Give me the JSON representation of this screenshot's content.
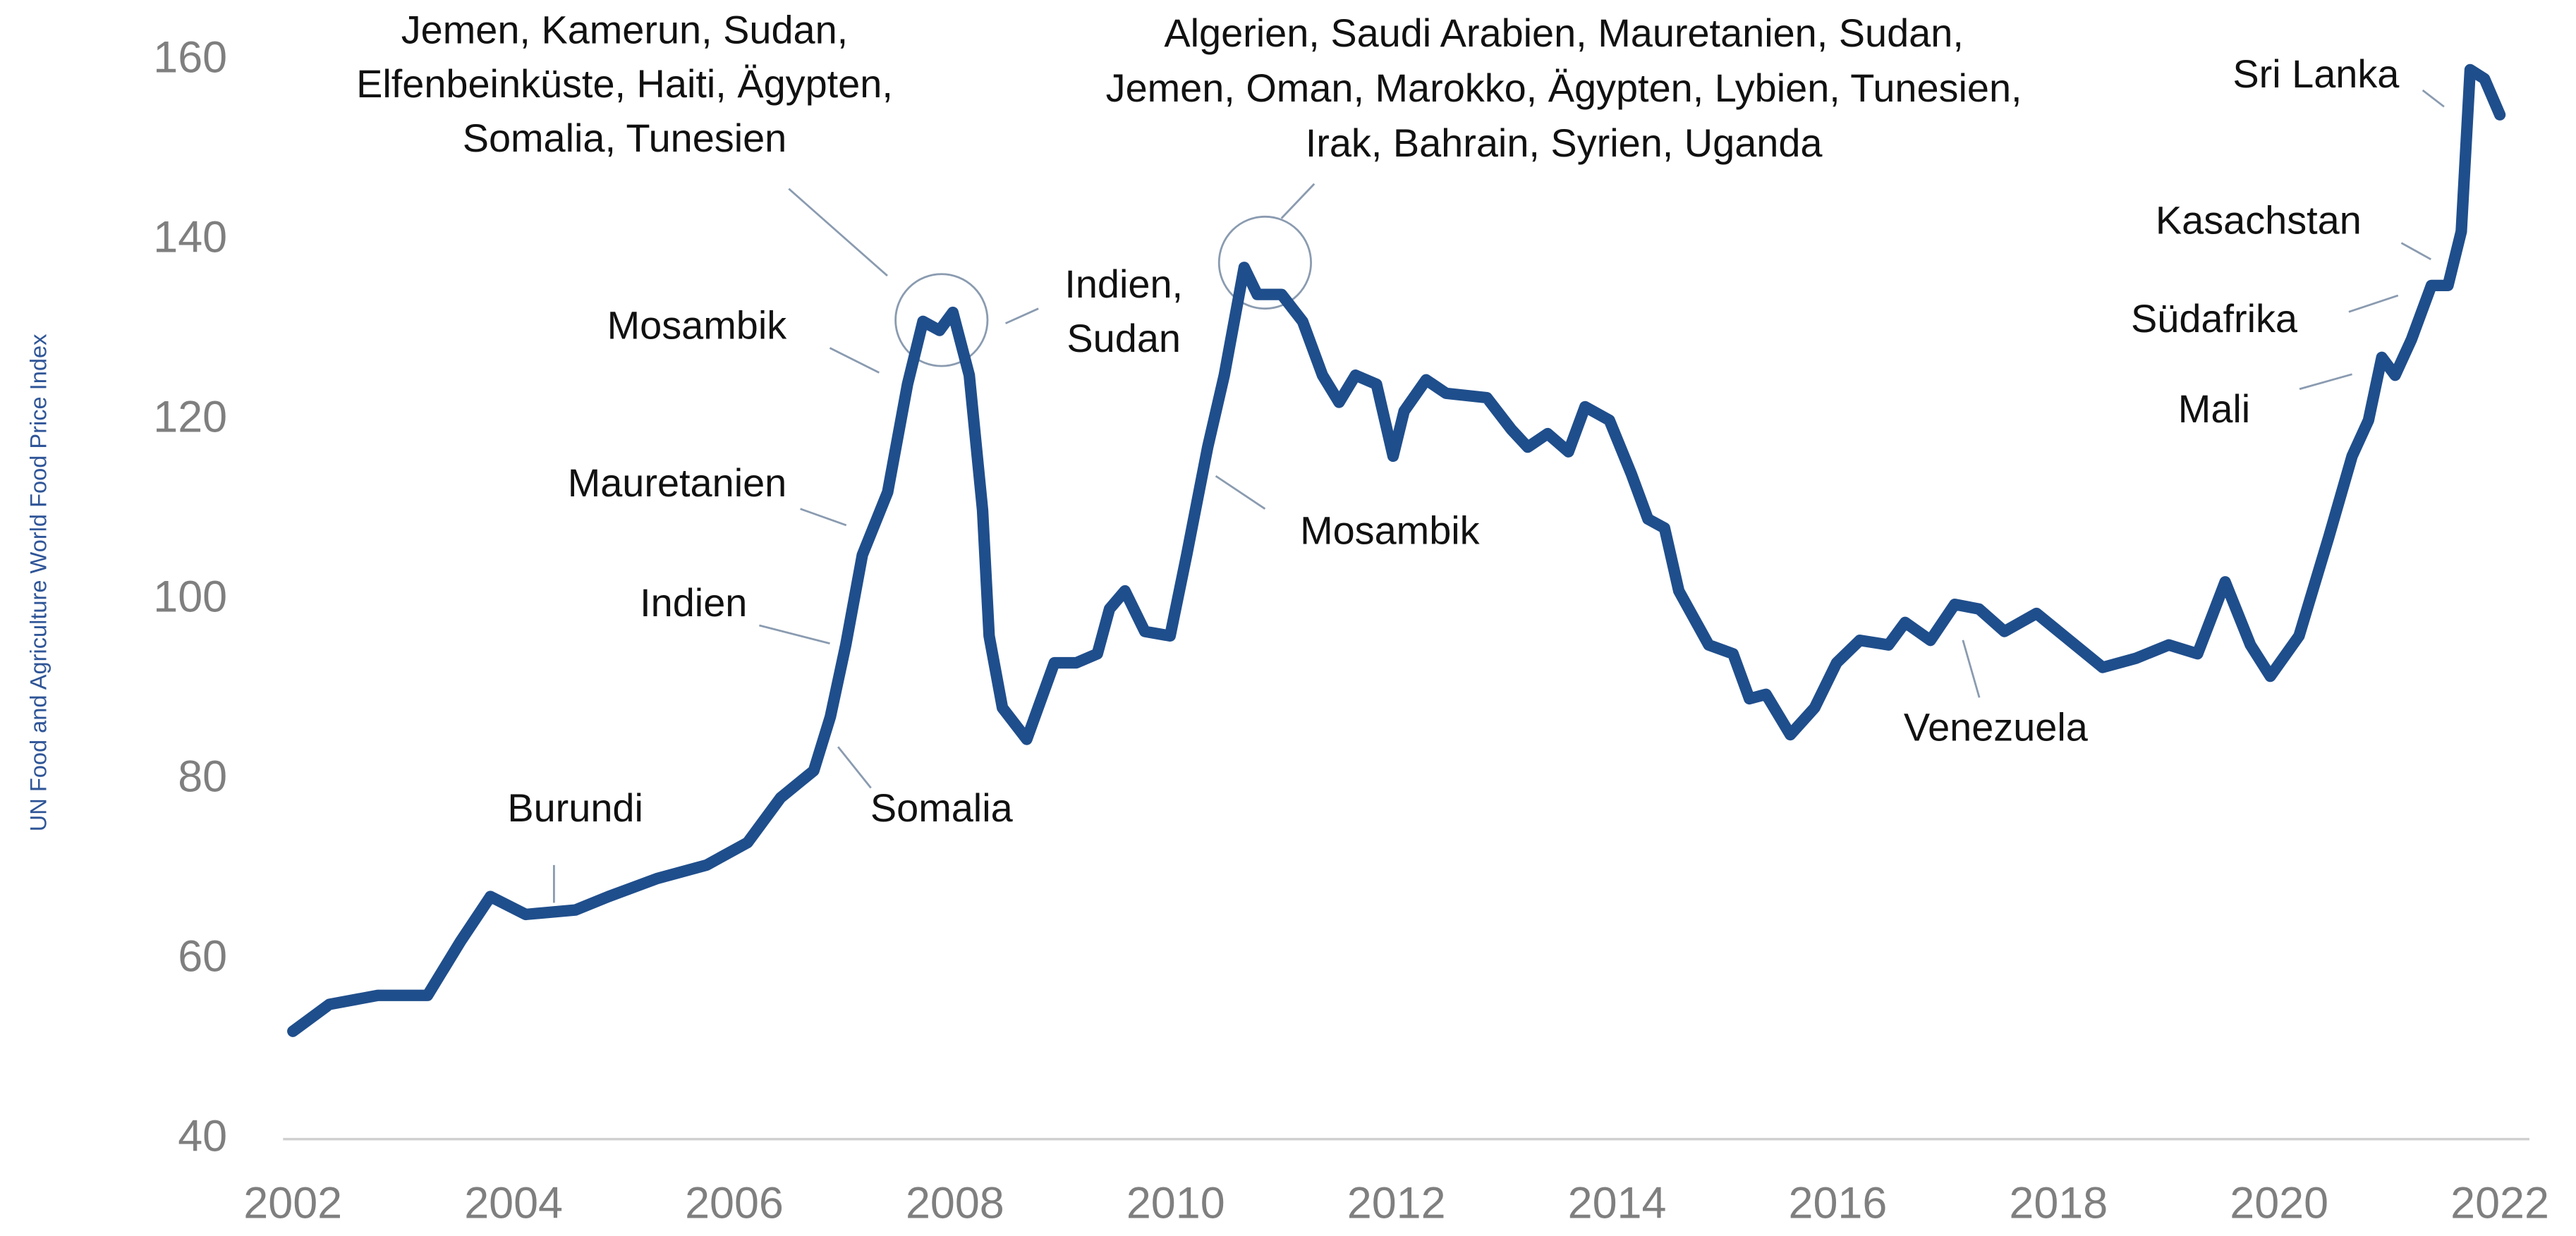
{
  "chart_data": {
    "type": "line",
    "y_label": "UN Food and Agriculture World Food Price Index",
    "xlim": [
      2002,
      2022
    ],
    "xticks": [
      2002,
      2004,
      2006,
      2008,
      2010,
      2012,
      2014,
      2016,
      2018,
      2020,
      2022
    ],
    "ylim": [
      40,
      160
    ],
    "yticks": [
      40,
      60,
      80,
      100,
      120,
      140,
      160
    ],
    "grid": false,
    "color": "#1f4e8c",
    "x": [
      2002.0,
      2002.33,
      2002.77,
      2003.22,
      2003.52,
      2003.79,
      2004.11,
      2004.56,
      2004.86,
      2005.3,
      2005.75,
      2006.12,
      2006.42,
      2006.72,
      2006.87,
      2007.01,
      2007.16,
      2007.39,
      2007.57,
      2007.71,
      2007.86,
      2007.98,
      2008.13,
      2008.25,
      2008.31,
      2008.43,
      2008.65,
      2008.9,
      2009.1,
      2009.29,
      2009.4,
      2009.54,
      2009.72,
      2009.95,
      2010.1,
      2010.29,
      2010.44,
      2010.62,
      2010.74,
      2010.96,
      2011.15,
      2011.33,
      2011.48,
      2011.63,
      2011.82,
      2011.97,
      2012.07,
      2012.27,
      2012.45,
      2012.82,
      2013.04,
      2013.19,
      2013.37,
      2013.56,
      2013.71,
      2013.93,
      2014.13,
      2014.28,
      2014.43,
      2014.56,
      2014.83,
      2015.05,
      2015.2,
      2015.35,
      2015.57,
      2015.79,
      2015.99,
      2016.2,
      2016.46,
      2016.61,
      2016.84,
      2017.06,
      2017.28,
      2017.51,
      2017.8,
      2018.1,
      2018.4,
      2018.7,
      2019.0,
      2019.26,
      2019.51,
      2019.74,
      2019.92,
      2020.18,
      2020.45,
      2020.66,
      2020.81,
      2020.93,
      2021.05,
      2021.2,
      2021.38,
      2021.53,
      2021.65,
      2021.73,
      2021.86,
      2022.0
    ],
    "values": [
      52,
      55,
      56,
      56,
      62,
      67,
      65,
      65.5,
      67,
      69,
      70.5,
      73,
      78,
      81,
      87,
      95,
      105,
      112,
      124,
      131,
      130,
      132,
      125,
      110,
      96,
      88,
      84.5,
      93,
      93,
      94,
      99,
      101,
      96.5,
      96,
      105,
      117,
      125,
      137,
      134,
      134,
      131,
      125,
      122,
      125,
      124,
      116,
      121,
      124.5,
      123,
      122.5,
      119,
      117,
      118.5,
      116.5,
      121.5,
      120,
      114,
      109,
      108,
      101,
      95,
      94,
      89,
      89.5,
      85,
      88,
      93,
      95.5,
      95,
      97.5,
      95.5,
      99.5,
      99,
      96.5,
      98.5,
      95.5,
      92.5,
      93.5,
      95,
      94,
      102,
      95,
      91.5,
      96,
      107,
      116,
      120,
      127,
      125,
      129,
      135,
      135,
      141,
      159,
      158,
      154
    ],
    "annotations": [
      [
        "Jemen, Kamerun, Sudan,",
        "Elfenbeinküste, Haiti, Ägypten,",
        "Somalia, Tunesien"
      ],
      [
        "Algerien, Saudi Arabien, Mauretanien, Sudan,",
        "Jemen, Oman, Marokko, Ägypten, Lybien, Tunesien,",
        "Irak, Bahrain, Syrien, Uganda"
      ],
      [
        "Indien,",
        "Sudan"
      ],
      [
        "Mosambik"
      ],
      [
        "Mauretanien"
      ],
      [
        "Indien"
      ],
      [
        "Somalia"
      ],
      [
        "Burundi"
      ],
      [
        "Mosambik"
      ],
      [
        "Venezuela"
      ],
      [
        "Sri Lanka"
      ],
      [
        "Kasachstan"
      ],
      [
        "Südafrika"
      ],
      [
        "Mali"
      ]
    ]
  }
}
